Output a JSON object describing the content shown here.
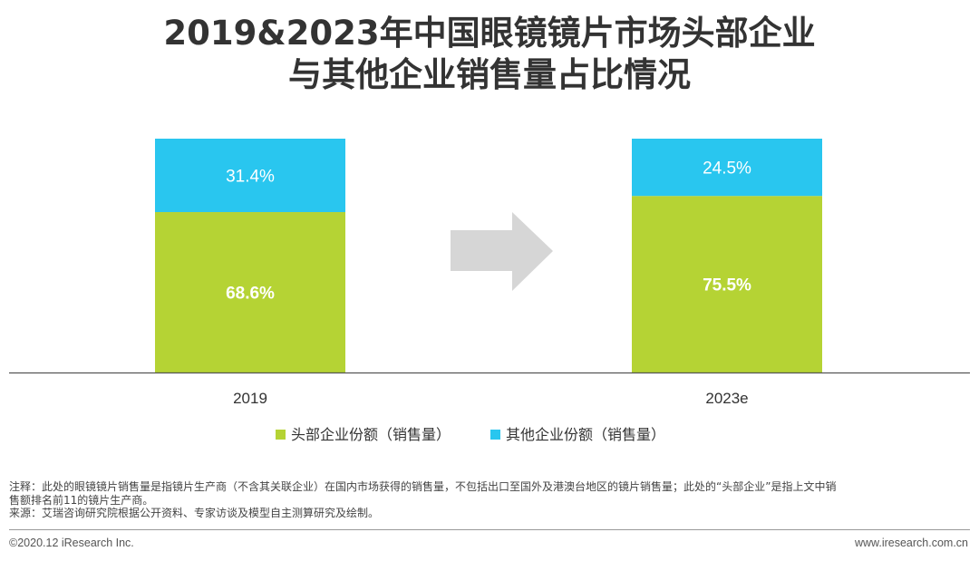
{
  "title_line1": "2019&2023年中国眼镜镜片市场头部企业",
  "title_line2": "与其他企业销售量占比情况",
  "chart_data": {
    "type": "bar",
    "stacked": true,
    "categories": [
      "2019",
      "2023e"
    ],
    "series": [
      {
        "name": "头部企业份额（销售量）",
        "values": [
          68.6,
          75.5
        ],
        "labels": [
          "68.6%",
          "75.5%"
        ],
        "color": "#b5d334"
      },
      {
        "name": "其他企业份额（销售量）",
        "values": [
          31.4,
          24.5
        ],
        "labels": [
          "31.4%",
          "24.5%"
        ],
        "color": "#29c6ef"
      }
    ],
    "ylim": [
      0,
      100
    ],
    "legend_position": "bottom",
    "grid": false
  },
  "arrow_color": "#d6d6d6",
  "note_line1": "注释：此处的眼镜镜片销售量是指镜片生产商（不含其关联企业）在国内市场获得的销售量，不包括出口至国外及港澳台地区的镜片销售量；此处的“头部企业”是指上文中销",
  "note_line2": "售额排名前11的镜片生产商。",
  "source": "来源：艾瑞咨询研究院根据公开资料、专家访谈及模型自主测算研究及绘制。",
  "footer": {
    "copyright": "©2020.12 iResearch Inc.",
    "website": "www.iresearch.com.cn"
  }
}
